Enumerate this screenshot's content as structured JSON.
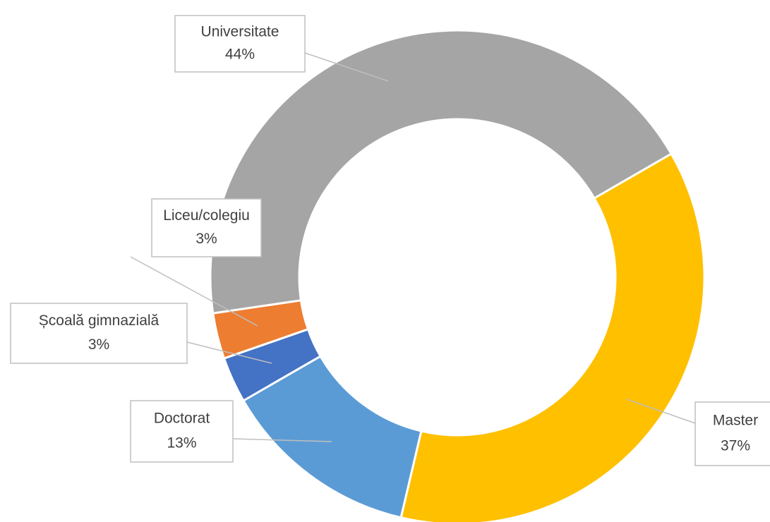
{
  "chart_data": {
    "type": "donut",
    "categories": [
      "Master",
      "Doctorat",
      "Școală gimnazială",
      "Liceu/colegiu",
      "Universitate"
    ],
    "values": [
      37,
      13,
      3,
      3,
      44
    ],
    "value_labels": [
      "37%",
      "13%",
      "3%",
      "3%",
      "44%"
    ],
    "colors": [
      "#FFC000",
      "#5B9BD5",
      "#4472C4",
      "#ED7D31",
      "#A5A5A5"
    ]
  }
}
